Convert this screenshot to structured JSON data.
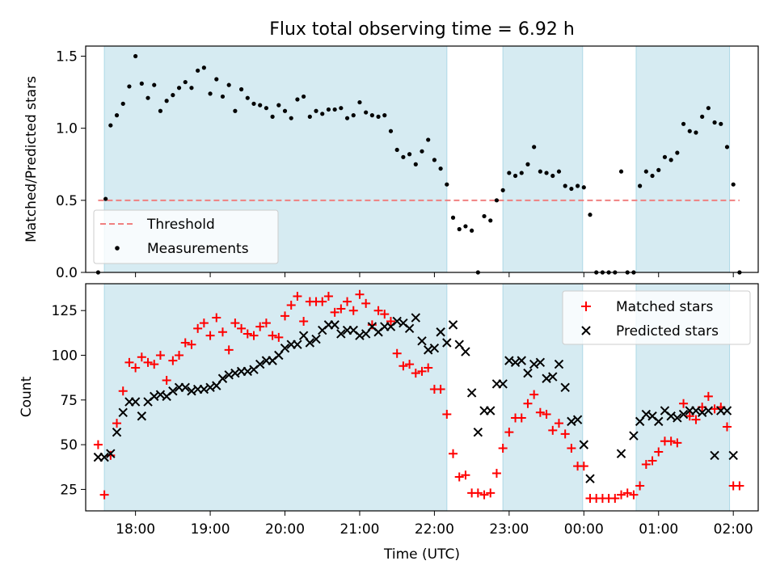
{
  "chart_data": [
    {
      "type": "scatter",
      "title": "Flux total observing time = 6.92 h",
      "xlabel": "",
      "ylabel": "Matched/Predicted stars",
      "ylim": [
        0,
        1.57
      ],
      "xlim": [
        "17:20",
        "02:20"
      ],
      "x_ticks": [
        "18:00",
        "19:00",
        "20:00",
        "21:00",
        "22:00",
        "23:00",
        "00:00",
        "01:00",
        "02:00"
      ],
      "y_ticks": [
        "0.0",
        "0.5",
        "1.0",
        "1.5"
      ],
      "shaded_intervals": [
        [
          "17:35",
          "22:10"
        ],
        [
          "22:55",
          "23:59"
        ],
        [
          "00:42",
          "01:57"
        ]
      ],
      "legend_placement": "lower-left",
      "series": [
        {
          "name": "Threshold",
          "kind": "line",
          "color": "#f08080",
          "style": "dashed",
          "x": [
            "17:30",
            "02:05"
          ],
          "y": [
            0.5,
            0.5
          ]
        },
        {
          "name": "Measurements",
          "kind": "scatter",
          "color": "#000000",
          "marker": "dot",
          "x": [
            "17:30",
            "17:36",
            "17:40",
            "17:45",
            "17:50",
            "17:55",
            "18:00",
            "18:05",
            "18:10",
            "18:15",
            "18:20",
            "18:25",
            "18:30",
            "18:35",
            "18:40",
            "18:45",
            "18:50",
            "18:55",
            "19:00",
            "19:05",
            "19:10",
            "19:15",
            "19:20",
            "19:25",
            "19:30",
            "19:35",
            "19:40",
            "19:45",
            "19:50",
            "19:55",
            "20:00",
            "20:05",
            "20:10",
            "20:15",
            "20:20",
            "20:25",
            "20:30",
            "20:35",
            "20:40",
            "20:45",
            "20:50",
            "20:55",
            "21:00",
            "21:05",
            "21:10",
            "21:15",
            "21:20",
            "21:25",
            "21:30",
            "21:35",
            "21:40",
            "21:45",
            "21:50",
            "21:55",
            "22:00",
            "22:05",
            "22:10",
            "22:15",
            "22:20",
            "22:25",
            "22:30",
            "22:35",
            "22:40",
            "22:45",
            "22:50",
            "22:55",
            "23:00",
            "23:05",
            "23:10",
            "23:15",
            "23:20",
            "23:25",
            "23:30",
            "23:35",
            "23:40",
            "23:45",
            "23:50",
            "23:55",
            "00:00",
            "00:05",
            "00:10",
            "00:15",
            "00:20",
            "00:25",
            "00:30",
            "00:35",
            "00:40",
            "00:45",
            "00:50",
            "00:55",
            "01:00",
            "01:05",
            "01:10",
            "01:15",
            "01:20",
            "01:25",
            "01:30",
            "01:35",
            "01:40",
            "01:45",
            "01:50",
            "01:55",
            "02:00",
            "02:05"
          ],
          "y": [
            0.0,
            0.51,
            1.02,
            1.09,
            1.17,
            1.29,
            1.5,
            1.31,
            1.21,
            1.3,
            1.12,
            1.19,
            1.23,
            1.28,
            1.32,
            1.28,
            1.4,
            1.42,
            1.24,
            1.34,
            1.22,
            1.3,
            1.12,
            1.27,
            1.21,
            1.17,
            1.16,
            1.14,
            1.08,
            1.16,
            1.12,
            1.07,
            1.2,
            1.22,
            1.08,
            1.12,
            1.1,
            1.13,
            1.13,
            1.14,
            1.07,
            1.09,
            1.18,
            1.11,
            1.09,
            1.08,
            1.09,
            0.98,
            0.85,
            0.8,
            0.82,
            0.75,
            0.84,
            0.92,
            0.78,
            0.72,
            0.61,
            0.38,
            0.3,
            0.32,
            0.29,
            0.0,
            0.39,
            0.36,
            0.5,
            0.57,
            0.69,
            0.67,
            0.69,
            0.75,
            0.87,
            0.7,
            0.69,
            0.67,
            0.7,
            0.6,
            0.58,
            0.6,
            0.59,
            0.4,
            0.0,
            0.0,
            0.0,
            0.0,
            0.7,
            0.0,
            0.0,
            0.6,
            0.7,
            0.67,
            0.71,
            0.8,
            0.78,
            0.83,
            1.03,
            0.98,
            0.97,
            1.08,
            1.14,
            1.04,
            1.03,
            0.87,
            0.61,
            0.0
          ]
        }
      ]
    },
    {
      "type": "scatter",
      "title": "",
      "xlabel": "Time (UTC)",
      "ylabel": "Count",
      "ylim": [
        13,
        140
      ],
      "xlim": [
        "17:20",
        "02:20"
      ],
      "x_ticks": [
        "18:00",
        "19:00",
        "20:00",
        "21:00",
        "22:00",
        "23:00",
        "00:00",
        "01:00",
        "02:00"
      ],
      "y_ticks": [
        "25",
        "50",
        "75",
        "100",
        "125"
      ],
      "shaded_intervals": [
        [
          "17:35",
          "22:10"
        ],
        [
          "22:55",
          "23:59"
        ],
        [
          "00:42",
          "01:57"
        ]
      ],
      "legend_placement": "upper-right",
      "series": [
        {
          "name": "Matched stars",
          "kind": "scatter",
          "color": "#ff0000",
          "marker": "plus",
          "x": [
            "17:30",
            "17:35",
            "17:40",
            "17:45",
            "17:50",
            "17:55",
            "18:00",
            "18:05",
            "18:10",
            "18:15",
            "18:20",
            "18:25",
            "18:30",
            "18:35",
            "18:40",
            "18:45",
            "18:50",
            "18:55",
            "19:00",
            "19:05",
            "19:10",
            "19:15",
            "19:20",
            "19:25",
            "19:30",
            "19:35",
            "19:40",
            "19:45",
            "19:50",
            "19:55",
            "20:00",
            "20:05",
            "20:10",
            "20:15",
            "20:20",
            "20:25",
            "20:30",
            "20:35",
            "20:40",
            "20:45",
            "20:50",
            "20:55",
            "21:00",
            "21:05",
            "21:10",
            "21:15",
            "21:20",
            "21:25",
            "21:30",
            "21:35",
            "21:40",
            "21:45",
            "21:50",
            "21:55",
            "22:00",
            "22:05",
            "22:10",
            "22:15",
            "22:20",
            "22:25",
            "22:30",
            "22:35",
            "22:40",
            "22:45",
            "22:50",
            "22:55",
            "23:00",
            "23:05",
            "23:10",
            "23:15",
            "23:20",
            "23:25",
            "23:30",
            "23:35",
            "23:40",
            "23:45",
            "23:50",
            "23:55",
            "00:00",
            "00:05",
            "00:10",
            "00:15",
            "00:20",
            "00:25",
            "00:30",
            "00:35",
            "00:40",
            "00:45",
            "00:50",
            "00:55",
            "01:00",
            "01:05",
            "01:10",
            "01:15",
            "01:20",
            "01:25",
            "01:30",
            "01:35",
            "01:40",
            "01:45",
            "01:50",
            "01:55",
            "02:00",
            "02:05"
          ],
          "y": [
            50,
            22,
            44,
            62,
            80,
            96,
            93,
            99,
            96,
            95,
            100,
            86,
            97,
            100,
            107,
            106,
            115,
            118,
            111,
            121,
            113,
            103,
            118,
            115,
            112,
            111,
            116,
            118,
            111,
            110,
            122,
            128,
            133,
            119,
            130,
            130,
            130,
            133,
            124,
            126,
            130,
            125,
            134,
            129,
            117,
            125,
            123,
            119,
            101,
            94,
            95,
            90,
            91,
            93,
            81,
            81,
            67,
            45,
            32,
            33,
            23,
            23,
            22,
            23,
            34,
            48,
            57,
            65,
            65,
            73,
            78,
            68,
            67,
            58,
            62,
            56,
            48,
            38,
            38,
            20,
            20,
            20,
            20,
            20,
            22,
            23,
            22,
            27,
            39,
            41,
            46,
            52,
            52,
            51,
            73,
            66,
            64,
            71,
            77,
            70,
            71,
            60,
            27,
            27
          ]
        },
        {
          "name": "Predicted stars",
          "kind": "scatter",
          "color": "#000000",
          "marker": "x",
          "x": [
            "17:30",
            "17:35",
            "17:40",
            "17:45",
            "17:50",
            "17:55",
            "18:00",
            "18:05",
            "18:10",
            "18:15",
            "18:20",
            "18:25",
            "18:30",
            "18:35",
            "18:40",
            "18:45",
            "18:50",
            "18:55",
            "19:00",
            "19:05",
            "19:10",
            "19:15",
            "19:20",
            "19:25",
            "19:30",
            "19:35",
            "19:40",
            "19:45",
            "19:50",
            "19:55",
            "20:00",
            "20:05",
            "20:10",
            "20:15",
            "20:20",
            "20:25",
            "20:30",
            "20:35",
            "20:40",
            "20:45",
            "20:50",
            "20:55",
            "21:00",
            "21:05",
            "21:10",
            "21:15",
            "21:20",
            "21:25",
            "21:30",
            "21:35",
            "21:40",
            "21:45",
            "21:50",
            "21:55",
            "22:00",
            "22:05",
            "22:10",
            "22:15",
            "22:20",
            "22:25",
            "22:30",
            "22:35",
            "22:40",
            "22:45",
            "22:50",
            "22:55",
            "23:00",
            "23:05",
            "23:10",
            "23:15",
            "23:20",
            "23:25",
            "23:30",
            "23:35",
            "23:40",
            "23:45",
            "23:50",
            "23:55",
            "00:00",
            "00:05",
            "00:30",
            "00:40",
            "00:45",
            "00:50",
            "00:55",
            "01:00",
            "01:05",
            "01:10",
            "01:15",
            "01:20",
            "01:25",
            "01:30",
            "01:35",
            "01:40",
            "01:45",
            "01:50",
            "01:55",
            "02:00"
          ],
          "y": [
            43,
            43,
            45,
            57,
            68,
            74,
            74,
            66,
            74,
            77,
            78,
            77,
            80,
            82,
            82,
            80,
            81,
            81,
            82,
            83,
            87,
            89,
            90,
            91,
            91,
            92,
            95,
            97,
            97,
            100,
            104,
            106,
            106,
            111,
            107,
            109,
            114,
            117,
            117,
            112,
            114,
            114,
            111,
            112,
            116,
            113,
            116,
            116,
            119,
            118,
            115,
            121,
            108,
            103,
            104,
            113,
            107,
            117,
            106,
            102,
            79,
            57,
            69,
            69,
            84,
            84,
            97,
            96,
            97,
            90,
            95,
            96,
            87,
            88,
            95,
            82,
            63,
            64,
            50,
            31,
            45,
            55,
            63,
            67,
            66,
            63,
            69,
            66,
            65,
            67,
            69,
            69,
            68,
            69,
            44,
            69,
            69,
            44
          ]
        }
      ]
    }
  ]
}
